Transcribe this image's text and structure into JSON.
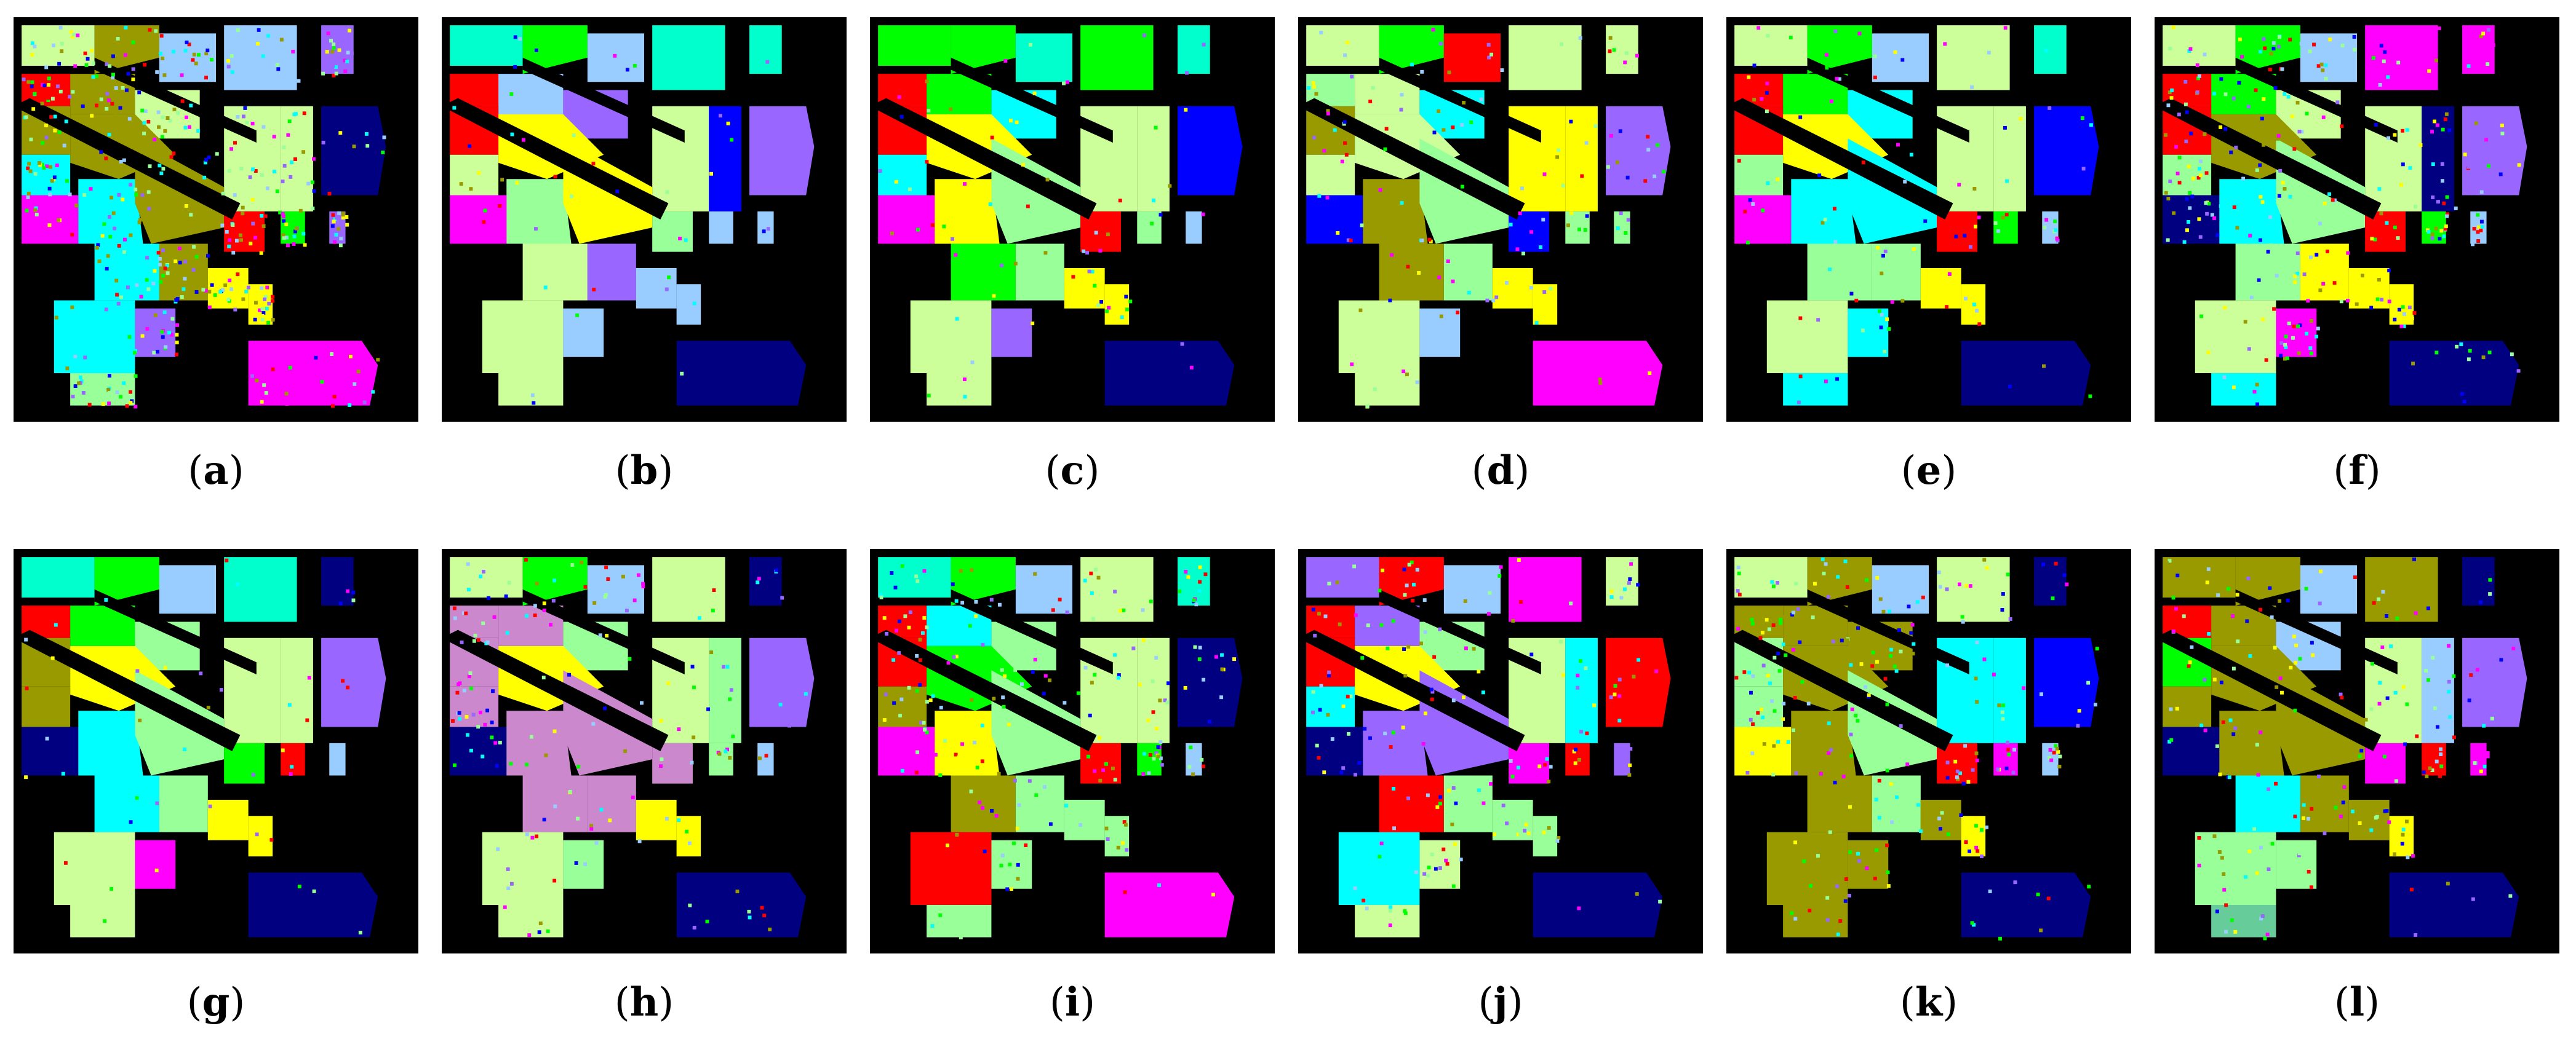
{
  "panels": [
    {
      "label": "a"
    },
    {
      "label": "b"
    },
    {
      "label": "c"
    },
    {
      "label": "d"
    },
    {
      "label": "e"
    },
    {
      "label": "f"
    },
    {
      "label": "g"
    },
    {
      "label": "h"
    },
    {
      "label": "i"
    },
    {
      "label": "j"
    },
    {
      "label": "k"
    },
    {
      "label": "l"
    }
  ],
  "palette": {
    "background": "#000000",
    "olive": "#999900",
    "green": "#00ff00",
    "light_green": "#ccff99",
    "mint": "#99ff99",
    "aqua": "#00ffcc",
    "cyan": "#00ffff",
    "sky": "#99ccff",
    "navy": "#000080",
    "blue": "#0000ff",
    "violet": "#9966ff",
    "magenta": "#ff00ff",
    "red": "#ff0000",
    "yellow": "#ffff00",
    "mauve": "#cc88cc",
    "sage": "#66cc99"
  }
}
